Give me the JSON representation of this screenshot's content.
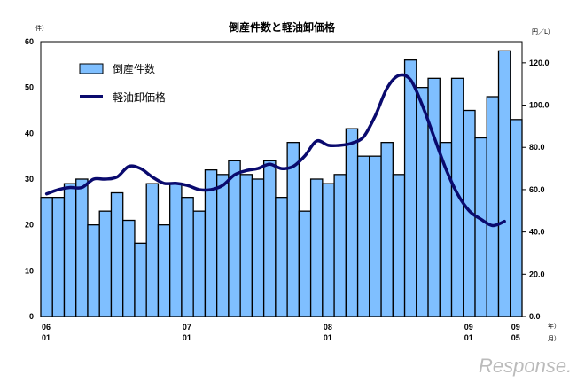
{
  "chart_data": {
    "type": "bar",
    "title": "倒産件数と軽油卸価格",
    "left_unit": "件）",
    "right_unit": "円／L）",
    "x_unit_year": "年）",
    "x_unit_month": "月）",
    "ylim_left": [
      0,
      60
    ],
    "ylim_right": [
      0,
      130
    ],
    "left_ticks": [
      "0",
      "10",
      "20",
      "30",
      "40",
      "50",
      "60"
    ],
    "right_ticks": [
      "0.0",
      "20.0",
      "40.0",
      "60.0",
      "80.0",
      "100.0",
      "120.0"
    ],
    "x_tick_labels": [
      {
        "index": 0,
        "year": "06",
        "month": "01"
      },
      {
        "index": 12,
        "year": "07",
        "month": "01"
      },
      {
        "index": 24,
        "year": "08",
        "month": "01"
      },
      {
        "index": 36,
        "year": "09",
        "month": "01"
      },
      {
        "index": 40,
        "year": "09",
        "month": "05"
      }
    ],
    "grid": false,
    "legend_placement": "top-left",
    "series": [
      {
        "name": "倒産件数",
        "type": "bar",
        "axis": "left",
        "color": "#7fbfff",
        "values": [
          26,
          26,
          29,
          30,
          20,
          23,
          27,
          21,
          16,
          29,
          20,
          29,
          26,
          23,
          32,
          31,
          34,
          31,
          30,
          34,
          26,
          38,
          23,
          30,
          29,
          31,
          41,
          35,
          35,
          38,
          31,
          56,
          50,
          52,
          38,
          52,
          45,
          39,
          48,
          58,
          43
        ]
      },
      {
        "name": "軽油卸価格",
        "type": "line",
        "axis": "right",
        "color": "#0a0a6e",
        "values": [
          58,
          60,
          61,
          61,
          65,
          65,
          66,
          71,
          70,
          66,
          63,
          63,
          62,
          60,
          60,
          62,
          67,
          69,
          70,
          72,
          70,
          71,
          76,
          83,
          81,
          81,
          82,
          85,
          95,
          108,
          114,
          112,
          100,
          85,
          70,
          58,
          50,
          46,
          43,
          45
        ]
      }
    ]
  },
  "watermark": "Response."
}
